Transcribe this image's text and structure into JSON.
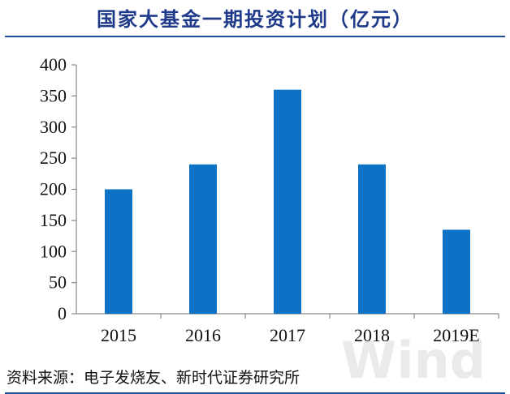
{
  "title": "国家大基金一期投资计划（亿元）",
  "source": "资料来源：电子发烧友、新时代证券研究所",
  "watermark": "Wind",
  "colors": {
    "bar": "#0b72c6",
    "title": "#1f3a8a",
    "rule": "#1f4e9a"
  },
  "chart_data": {
    "type": "bar",
    "title": "国家大基金一期投资计划（亿元）",
    "categories": [
      "2015",
      "2016",
      "2017",
      "2018",
      "2019E"
    ],
    "values": [
      200,
      240,
      360,
      240,
      135
    ],
    "xlabel": "",
    "ylabel": "",
    "ylim": [
      0,
      400
    ],
    "yticks": [
      0,
      50,
      100,
      150,
      200,
      250,
      300,
      350,
      400
    ],
    "grid": false,
    "legend": "none"
  }
}
